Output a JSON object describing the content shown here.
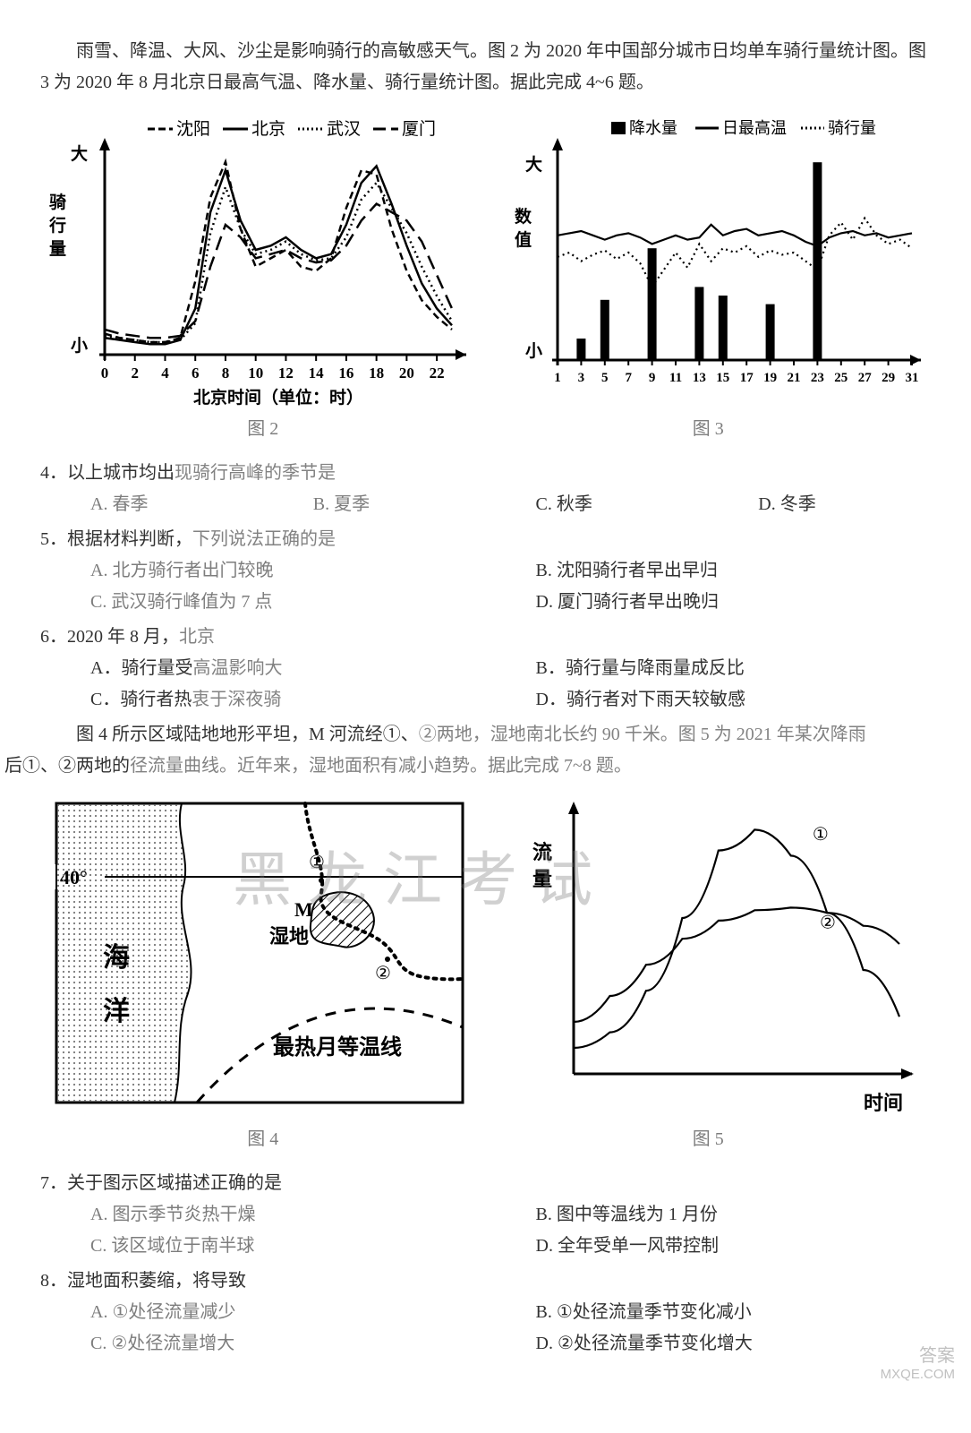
{
  "intro1": "雨雪、降温、大风、沙尘是影响骑行的高敏感天气。图 2 为 2020 年中国部分城市日均单车骑行量统计图。图 3 为 2020 年 8 月北京日最高气温、降水量、骑行量统计图。据此完成 4~6 题。",
  "chart2": {
    "type": "line",
    "legend": [
      {
        "label": "沈阳",
        "dash": "8 4",
        "color": "#000"
      },
      {
        "label": "北京",
        "dash": "0",
        "color": "#000"
      },
      {
        "label": "武汉",
        "dash": "2 3",
        "color": "#000"
      },
      {
        "label": "厦门",
        "dash": "14 6",
        "color": "#000"
      }
    ],
    "xlabel": "北京时间（单位：时）",
    "ylabel_top": "大",
    "ylabel_mid": "骑\n行\n量",
    "ylabel_bot": "小",
    "xticks": [
      0,
      2,
      4,
      6,
      8,
      10,
      12,
      14,
      16,
      18,
      20,
      22
    ],
    "xlim": [
      0,
      23
    ],
    "ylim": [
      0,
      10
    ],
    "series": {
      "shenyang": [
        1.0,
        0.8,
        0.7,
        0.6,
        0.6,
        0.8,
        3.5,
        7.5,
        9.2,
        6.0,
        4.2,
        4.6,
        5.0,
        4.2,
        4.0,
        4.6,
        7.0,
        8.8,
        8.6,
        6.0,
        4.0,
        2.6,
        1.8,
        1.2
      ],
      "beijing": [
        0.8,
        0.7,
        0.6,
        0.5,
        0.5,
        0.7,
        2.2,
        6.8,
        8.8,
        6.4,
        5.0,
        5.2,
        5.6,
        5.0,
        4.6,
        4.8,
        6.2,
        8.2,
        9.0,
        7.2,
        5.2,
        3.4,
        2.2,
        1.4
      ],
      "wuhan": [
        0.9,
        0.8,
        0.7,
        0.6,
        0.6,
        0.7,
        1.5,
        5.8,
        8.0,
        6.0,
        4.8,
        5.0,
        5.4,
        4.8,
        4.5,
        4.6,
        5.6,
        7.4,
        8.2,
        7.0,
        5.8,
        4.2,
        2.8,
        1.6
      ],
      "xiamen": [
        1.2,
        1.0,
        0.9,
        0.8,
        0.8,
        0.9,
        1.6,
        4.2,
        6.2,
        5.6,
        4.6,
        4.8,
        5.0,
        4.6,
        4.4,
        4.5,
        5.2,
        6.4,
        7.2,
        6.8,
        6.4,
        5.4,
        3.8,
        2.2
      ]
    },
    "stroke_width": 2.5,
    "background": "#ffffff"
  },
  "chart3": {
    "type": "combo",
    "legend": [
      {
        "label": "降水量",
        "kind": "bar",
        "color": "#000"
      },
      {
        "label": "日最高温",
        "kind": "line",
        "dash": "0",
        "color": "#000"
      },
      {
        "label": "骑行量",
        "kind": "line",
        "dash": "2 3",
        "color": "#000"
      }
    ],
    "ylabel_top": "大",
    "ylabel_mid": "数\n值",
    "ylabel_bot": "小",
    "xticks": [
      1,
      3,
      5,
      7,
      9,
      11,
      13,
      15,
      17,
      19,
      21,
      23,
      25,
      27,
      29,
      31
    ],
    "xlim": [
      1,
      31
    ],
    "ylim": [
      0,
      10
    ],
    "temp": [
      5.8,
      5.9,
      6.0,
      5.8,
      5.6,
      5.8,
      5.9,
      5.7,
      5.4,
      5.6,
      5.8,
      5.6,
      5.7,
      6.3,
      5.8,
      6.0,
      6.1,
      5.8,
      5.9,
      6.0,
      5.8,
      5.5,
      5.3,
      5.7,
      5.9,
      6.0,
      5.8,
      5.9,
      5.7,
      5.8,
      5.9
    ],
    "ride": [
      4.8,
      5.0,
      4.6,
      4.9,
      5.1,
      4.7,
      5.0,
      4.5,
      3.4,
      4.2,
      5.0,
      4.3,
      5.4,
      4.6,
      5.2,
      5.0,
      5.3,
      4.8,
      5.1,
      4.9,
      5.0,
      4.6,
      4.2,
      5.8,
      6.4,
      5.6,
      6.6,
      5.8,
      5.4,
      5.6,
      5.2
    ],
    "precip": {
      "3": 1.0,
      "5": 2.8,
      "9": 5.2,
      "13": 3.4,
      "15": 3.0,
      "19": 2.6,
      "23": 9.2
    },
    "stroke_width": 2.2,
    "background": "#ffffff"
  },
  "caption2": "图 2",
  "caption3": "图 3",
  "q4": {
    "stem": "4．以上城市均出现骑行高峰的季节是",
    "opts": {
      "A": "A. 春季",
      "B": "B. 夏季",
      "C": "C. 秋季",
      "D": "D. 冬季"
    }
  },
  "q5": {
    "stem": "5．根据材料判断，下列说法正确的是",
    "opts": {
      "A": "A. 北方骑行者出门较晚",
      "B": "B. 沈阳骑行者早出早归",
      "C": "C. 武汉骑行峰值为 7 点",
      "D": "D. 厦门骑行者早出晚归"
    }
  },
  "q6": {
    "stem": "6．2020 年 8 月，北京",
    "opts": {
      "A": "A．骑行量受高温影响大",
      "B": "B．骑行量与降雨量成反比",
      "C": "C．骑行者热衷于深夜骑",
      "D": "D．骑行者对下雨天较敏感"
    }
  },
  "intro2": "图 4 所示区域陆地地形平坦，M 河流经①、②两地，湿地南北长约 90 千米。图 5 为 2021 年某次降雨后①、②两地的径流量曲线。近年来，湿地面积有减小趋势。据此完成 7~8 题。",
  "map": {
    "type": "map",
    "lat_label": "40°",
    "ocean_label": "海\n\n洋",
    "wetland_label": "湿地",
    "m_label": "M",
    "node1": "①",
    "node2": "②",
    "iso_label": "最热月等温线",
    "border_color": "#000",
    "bg": "#fff",
    "ocean_fill": "#d6d6d6",
    "stroke_width": 2
  },
  "chart5": {
    "type": "line",
    "xlabel": "时间",
    "ylabel": "流\n量",
    "series": {
      "s1": {
        "label": "①",
        "pts": [
          [
            0,
            1.0
          ],
          [
            1,
            1.6
          ],
          [
            2,
            3.2
          ],
          [
            3,
            6.0
          ],
          [
            4,
            8.6
          ],
          [
            5,
            9.4
          ],
          [
            6,
            8.4
          ],
          [
            7,
            6.2
          ],
          [
            8,
            4.0
          ],
          [
            9,
            2.2
          ]
        ]
      },
      "s2": {
        "label": "②",
        "pts": [
          [
            0,
            2.0
          ],
          [
            1,
            3.0
          ],
          [
            2,
            4.2
          ],
          [
            3,
            5.2
          ],
          [
            4,
            5.9
          ],
          [
            5,
            6.3
          ],
          [
            6,
            6.4
          ],
          [
            7,
            6.2
          ],
          [
            8,
            5.7
          ],
          [
            9,
            5.0
          ]
        ]
      }
    },
    "stroke_width": 2.2,
    "color": "#000",
    "background": "#fff"
  },
  "caption4": "图 4",
  "caption5": "图 5",
  "q7": {
    "stem": "7．关于图示区域描述正确的是",
    "opts": {
      "A": "A. 图示季节炎热干燥",
      "B": "B. 图中等温线为 1 月份",
      "C": "C. 该区域位于南半球",
      "D": "D. 全年受单一风带控制"
    }
  },
  "q8": {
    "stem": "8．湿地面积萎缩，将导致",
    "opts": {
      "A": "A. ①处径流量减少",
      "B": "B. ①处径流量季节变化减小",
      "C": "C. ②处径流量增大",
      "D": "D. ②处径流量季节变化增大"
    }
  },
  "watermark": "黑龙江考试",
  "corner": {
    "l1": "答案",
    "l2": "MXQE.COM"
  }
}
